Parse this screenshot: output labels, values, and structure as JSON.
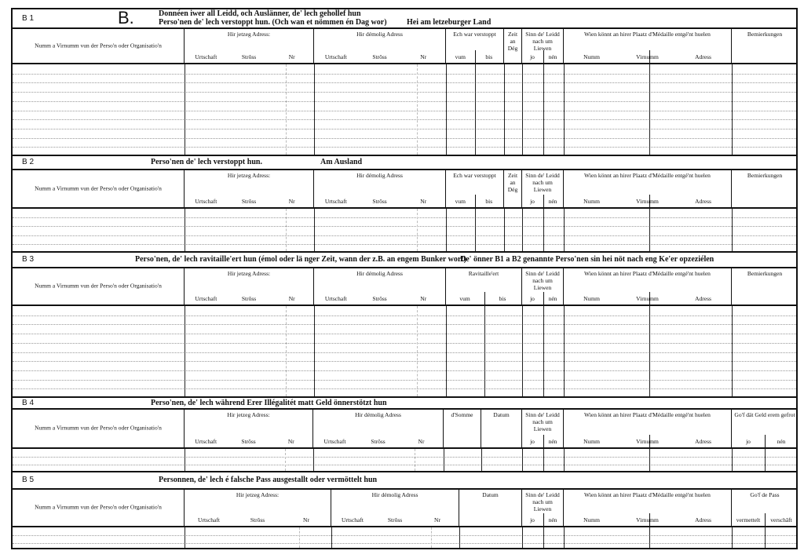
{
  "form_letter": "B.",
  "sections": [
    {
      "label": "B 1",
      "title_lines": [
        "Donnéen iwer all Leidd, och Auslänner, de' lech gehollef hun",
        "Perso'nen de' lech verstoppt hun. (Och wan et nömmen én Dag wor)"
      ],
      "title_extra": "Hei am letzeburger Land",
      "columns": [
        {
          "label": "Numm a Virnumm vun der Perso'n oder Organisatio'n",
          "subs": []
        },
        {
          "label": "Hir jetzeg Adress:",
          "subs": [
            "Urtschaft",
            "Strôss",
            "Nr"
          ]
        },
        {
          "label": "Hir démolig Adress",
          "subs": [
            "Urtschaft",
            "Strôss",
            "Nr"
          ]
        },
        {
          "label": "Ech war verstoppt",
          "subs": [
            "vum",
            "bis"
          ]
        },
        {
          "label": "Zeit an Dég",
          "subs": []
        },
        {
          "label": "Sinn de' Leidd nach um Liewen",
          "subs": [
            "jo",
            "nén"
          ]
        },
        {
          "label": "Wien könnt an hirer Plaatz d'Médaille entgé'nt huelen",
          "subs": [
            "Numm",
            "Virnumm",
            "Adress"
          ]
        },
        {
          "label": "Bemierkungen",
          "subs": []
        }
      ]
    },
    {
      "label": "B 2",
      "title_lines": [
        "Perso'nen de' lech verstoppt hun."
      ],
      "title_extra": "Am Ausland",
      "columns": [
        {
          "label": "Numm a Virnumm vun der Perso'n oder Organisatio'n",
          "subs": []
        },
        {
          "label": "Hir jetzeg Adress:",
          "subs": [
            "Urtschaft",
            "Strôss",
            "Nr"
          ]
        },
        {
          "label": "Hir démolig Adress",
          "subs": [
            "Urtschaft",
            "Strôss",
            "Nr"
          ]
        },
        {
          "label": "Ech war verstoppt",
          "subs": [
            "vum",
            "bis"
          ]
        },
        {
          "label": "Zeit an Dég",
          "subs": []
        },
        {
          "label": "Sinn de' Leidd nach um Liewen",
          "subs": [
            "jo",
            "nén"
          ]
        },
        {
          "label": "Wien könnt an hirer Plaatz d'Médaille entgé'nt huelen",
          "subs": [
            "Numm",
            "Virnumm",
            "Adress"
          ]
        },
        {
          "label": "Bemierkungen",
          "subs": []
        }
      ]
    },
    {
      "label": "B 3",
      "title_lines": [
        "Perso'nen, de' lech ravitaille'ert hun (émol oder lä nger Zeit, wann der z.B. an engem Bunker wor!)"
      ],
      "title_extra": "De' önner B1 a B2 genannte Perso'nen sin hei nöt nach eng Ke'er opzeziélen",
      "columns": [
        {
          "label": "Numm a Virnumm vun der Perso'n oder Organisatio'n",
          "subs": []
        },
        {
          "label": "Hir jetzeg Adress:",
          "subs": [
            "Urtschaft",
            "Strôss",
            "Nr"
          ]
        },
        {
          "label": "Hir démolig Adress",
          "subs": [
            "Urtschaft",
            "Strôss",
            "Nr"
          ]
        },
        {
          "label": "Ravitaille'ert",
          "subs": [
            "vum",
            "bis"
          ]
        },
        {
          "label": "Sinn de' Leidd nach um Liewen",
          "subs": [
            "jo",
            "nén"
          ]
        },
        {
          "label": "Wien könnt an hirer Plaatz d'Médaille entgé'nt huelen",
          "subs": [
            "Numm",
            "Virnumm",
            "Adress"
          ]
        },
        {
          "label": "Bemierkungen",
          "subs": []
        }
      ]
    },
    {
      "label": "B 4",
      "title_lines": [
        "Perso'nen, de' lech während Erer Illégalitét matt Geld önnerstötzt hun"
      ],
      "title_extra": "",
      "columns": [
        {
          "label": "Numm a Virnumm vun der Perso'n oder Organisatio'n",
          "subs": []
        },
        {
          "label": "Hir jetzeg Adress:",
          "subs": [
            "Urtschaft",
            "Strôss",
            "Nr"
          ]
        },
        {
          "label": "Hir démolig Adress",
          "subs": [
            "Urtschaft",
            "Strôss",
            "Nr"
          ]
        },
        {
          "label": "d'Somme",
          "subs": []
        },
        {
          "label": "Datum",
          "subs": []
        },
        {
          "label": "Sinn de' Leidd nach um Liewen",
          "subs": [
            "jo",
            "nén"
          ]
        },
        {
          "label": "Wien könnt an hirer Plaatz d'Médaille entgé'nt huelen",
          "subs": [
            "Numm",
            "Virnumm",
            "Adress"
          ]
        },
        {
          "label": "Go'f dät Geld erem gefrot",
          "subs": [
            "jo",
            "nén"
          ]
        }
      ]
    },
    {
      "label": "B 5",
      "title_lines": [
        "Personnen, de' lech é falsche Pass ausgestallt oder vermöttelt hun"
      ],
      "title_extra": "",
      "columns": [
        {
          "label": "Numm a Virnumm vun der Perso'n oder Organisatio'n",
          "subs": []
        },
        {
          "label": "Hir jetzeg Adress:",
          "subs": [
            "Urtschaft",
            "Strôss",
            "Nr"
          ]
        },
        {
          "label": "Hir démolig Adress",
          "subs": [
            "Urtschaft",
            "Strôss",
            "Nr"
          ]
        },
        {
          "label": "Datum",
          "subs": []
        },
        {
          "label": "Sinn de' Leidd nach um Liewen",
          "subs": [
            "jo",
            "nén"
          ]
        },
        {
          "label": "Wien könnt an hirer Plaatz d'Médaille entgé'nt huelen",
          "subs": [
            "Numm",
            "Virnumm",
            "Adress"
          ]
        },
        {
          "label": "Go'f de Pass",
          "subs": [
            "vermettelt",
            "verschâft"
          ]
        }
      ]
    }
  ]
}
